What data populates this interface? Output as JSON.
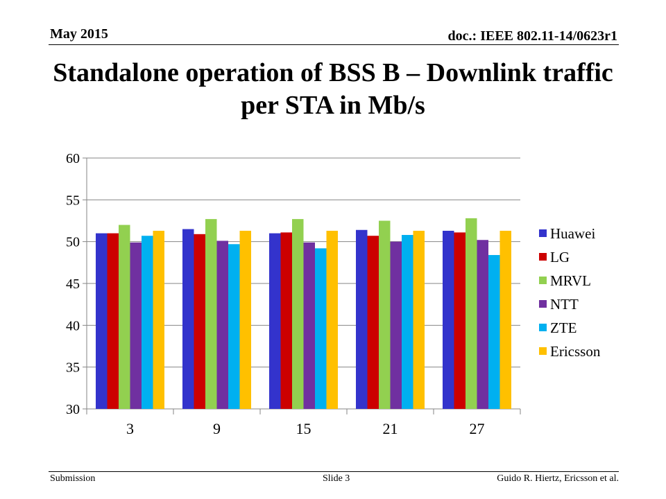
{
  "header": {
    "date": "May 2015",
    "doc_id": "doc.: IEEE 802.11-14/0623r1"
  },
  "slide": {
    "title": "Standalone operation of BSS B – Downlink traffic per STA in Mb/s"
  },
  "footer": {
    "left": "Submission",
    "center": "Slide 3",
    "right": "Guido R. Hiertz, Ericsson et al."
  },
  "chart_data": {
    "type": "bar",
    "title": "",
    "xlabel": "",
    "ylabel": "",
    "categories": [
      "3",
      "9",
      "15",
      "21",
      "27"
    ],
    "ylim": [
      30,
      60
    ],
    "yticks": [
      30,
      35,
      40,
      45,
      50,
      55,
      60
    ],
    "grid": "horizontal",
    "legend_position": "right",
    "series": [
      {
        "name": "Huawei",
        "color": "#3333CC",
        "values": [
          51.0,
          51.5,
          51.0,
          51.4,
          51.3
        ]
      },
      {
        "name": "LG",
        "color": "#CC0000",
        "values": [
          51.0,
          50.9,
          51.1,
          50.7,
          51.1
        ]
      },
      {
        "name": "MRVL",
        "color": "#92D050",
        "values": [
          52.0,
          52.7,
          52.7,
          52.5,
          52.8
        ]
      },
      {
        "name": "NTT",
        "color": "#7030A0",
        "values": [
          49.9,
          50.1,
          49.9,
          50.0,
          50.2
        ]
      },
      {
        "name": "ZTE",
        "color": "#00B0F0",
        "values": [
          50.7,
          49.7,
          49.2,
          50.8,
          48.4
        ]
      },
      {
        "name": "Ericsson",
        "color": "#FFC000",
        "values": [
          51.3,
          51.3,
          51.3,
          51.3,
          51.3
        ]
      }
    ]
  }
}
